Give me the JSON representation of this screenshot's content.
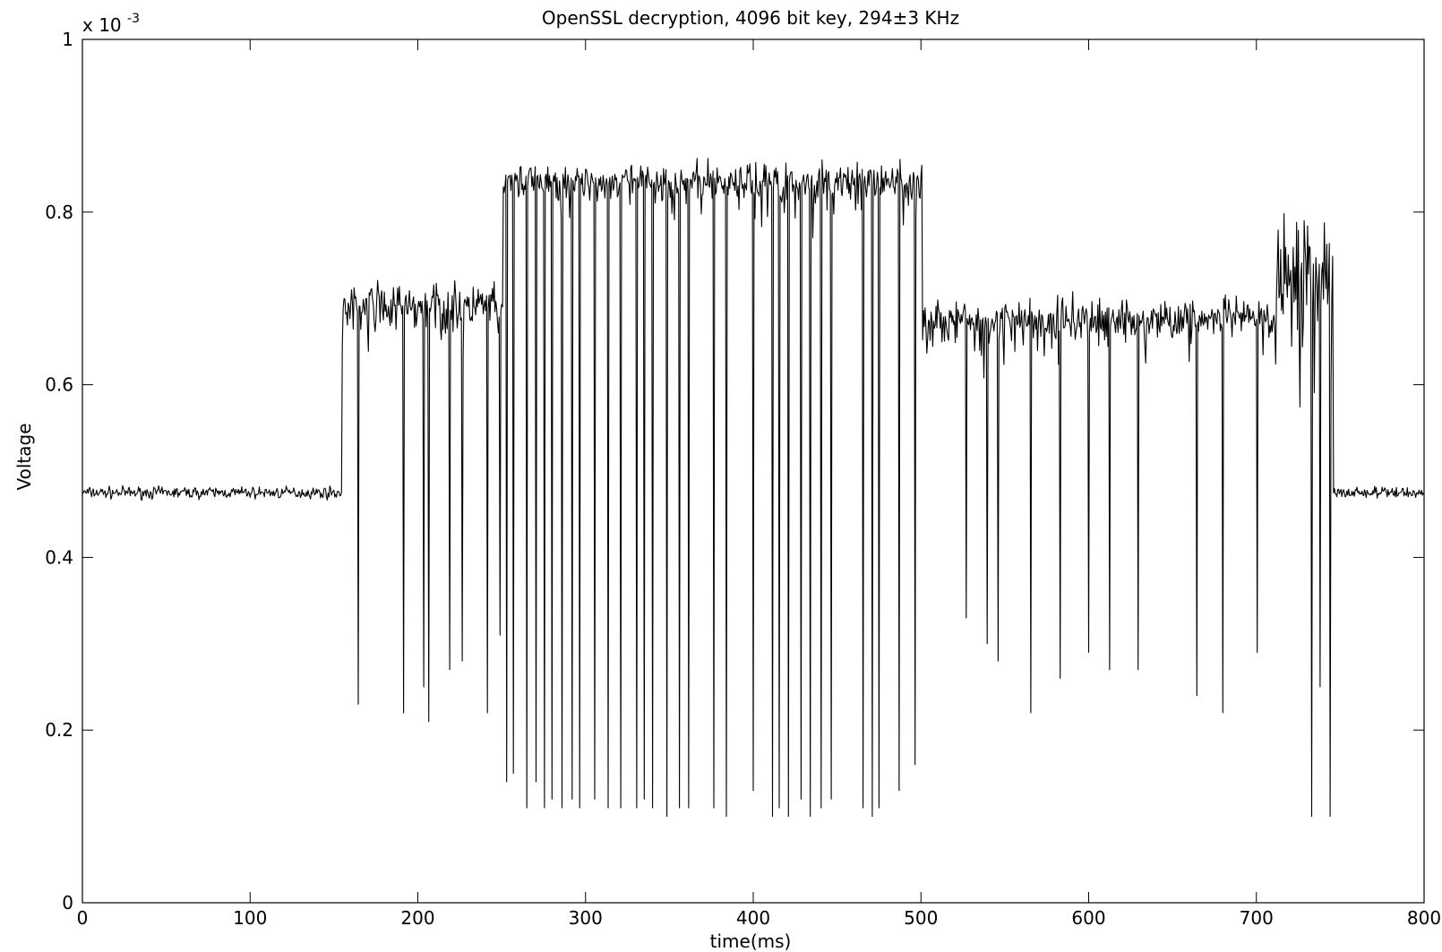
{
  "chart_data": {
    "type": "line",
    "title": "OpenSSL decryption, 4096 bit key, 294±3 KHz",
    "xlabel": "time(ms)",
    "ylabel": "Voltage",
    "y_multiplier_base": "x 10",
    "y_multiplier_exp": "-3",
    "xlim": [
      0,
      800
    ],
    "ylim": [
      0,
      1
    ],
    "x_ticks": [
      0,
      100,
      200,
      300,
      400,
      500,
      600,
      700,
      800
    ],
    "y_ticks": [
      0,
      0.2,
      0.4,
      0.6,
      0.8,
      1
    ],
    "x_tick_labels": [
      "0",
      "100",
      "200",
      "300",
      "400",
      "500",
      "600",
      "700",
      "800"
    ],
    "y_tick_labels": [
      "0",
      "0.2",
      "0.4",
      "0.6",
      "0.8",
      "1"
    ],
    "grid": false,
    "series": [
      {
        "color": "#000000",
        "segments": [
          {
            "x0": 0,
            "x1": 155,
            "level": 0.475,
            "noise": 0.006
          },
          {
            "x0": 155,
            "x1": 251,
            "level": 0.69,
            "noise": 0.022
          },
          {
            "x0": 251,
            "x1": 501,
            "level": 0.835,
            "noise": 0.018
          },
          {
            "x0": 501,
            "x1": 712,
            "level": 0.675,
            "noise": 0.022
          },
          {
            "x0": 712,
            "x1": 746,
            "level": 0.73,
            "noise": 0.06
          },
          {
            "x0": 746,
            "x1": 800,
            "level": 0.475,
            "noise": 0.006
          }
        ],
        "dips": [
          {
            "x": 164.5,
            "y": 0.23
          },
          {
            "x": 191.5,
            "y": 0.22
          },
          {
            "x": 203.5,
            "y": 0.25
          },
          {
            "x": 206.5,
            "y": 0.21
          },
          {
            "x": 219,
            "y": 0.27
          },
          {
            "x": 226.5,
            "y": 0.28
          },
          {
            "x": 241.5,
            "y": 0.22
          },
          {
            "x": 249,
            "y": 0.31
          },
          {
            "x": 253,
            "y": 0.14
          },
          {
            "x": 257,
            "y": 0.15
          },
          {
            "x": 265,
            "y": 0.11
          },
          {
            "x": 270.5,
            "y": 0.14
          },
          {
            "x": 275.5,
            "y": 0.11
          },
          {
            "x": 280,
            "y": 0.12
          },
          {
            "x": 286,
            "y": 0.11
          },
          {
            "x": 292,
            "y": 0.12
          },
          {
            "x": 296.5,
            "y": 0.11
          },
          {
            "x": 305.5,
            "y": 0.12
          },
          {
            "x": 313.5,
            "y": 0.11
          },
          {
            "x": 321,
            "y": 0.11
          },
          {
            "x": 330.5,
            "y": 0.11
          },
          {
            "x": 335,
            "y": 0.12
          },
          {
            "x": 340,
            "y": 0.11
          },
          {
            "x": 348.5,
            "y": 0.1
          },
          {
            "x": 356,
            "y": 0.11
          },
          {
            "x": 361.5,
            "y": 0.11
          },
          {
            "x": 376.5,
            "y": 0.11
          },
          {
            "x": 384,
            "y": 0.1
          },
          {
            "x": 400,
            "y": 0.13
          },
          {
            "x": 411.5,
            "y": 0.1
          },
          {
            "x": 415.5,
            "y": 0.11
          },
          {
            "x": 421,
            "y": 0.1
          },
          {
            "x": 428.5,
            "y": 0.12
          },
          {
            "x": 434,
            "y": 0.1
          },
          {
            "x": 440.5,
            "y": 0.11
          },
          {
            "x": 446.5,
            "y": 0.12
          },
          {
            "x": 465.5,
            "y": 0.11
          },
          {
            "x": 471,
            "y": 0.1
          },
          {
            "x": 475,
            "y": 0.11
          },
          {
            "x": 487,
            "y": 0.13
          },
          {
            "x": 496.5,
            "y": 0.16
          },
          {
            "x": 527,
            "y": 0.33
          },
          {
            "x": 539.5,
            "y": 0.3
          },
          {
            "x": 546,
            "y": 0.28
          },
          {
            "x": 565.5,
            "y": 0.22
          },
          {
            "x": 583,
            "y": 0.26
          },
          {
            "x": 600,
            "y": 0.29
          },
          {
            "x": 612.5,
            "y": 0.27
          },
          {
            "x": 629.5,
            "y": 0.27
          },
          {
            "x": 664.5,
            "y": 0.24
          },
          {
            "x": 680,
            "y": 0.22
          },
          {
            "x": 700.5,
            "y": 0.29
          },
          {
            "x": 733,
            "y": 0.1
          },
          {
            "x": 738,
            "y": 0.25
          },
          {
            "x": 744,
            "y": 0.1
          }
        ]
      }
    ]
  }
}
